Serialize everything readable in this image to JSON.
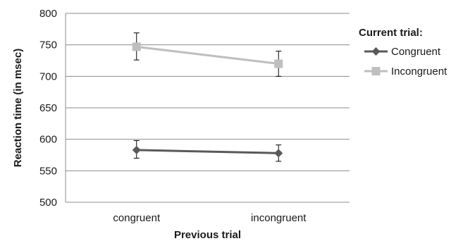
{
  "chart_data": {
    "type": "line",
    "xlabel": "Previous trial",
    "ylabel": "Reaction time  (in msec)",
    "categories": [
      "congruent",
      "incongruent"
    ],
    "ylim": [
      500,
      800
    ],
    "yticks": [
      500,
      550,
      600,
      650,
      700,
      750,
      800
    ],
    "grid": "horizontal",
    "legend": {
      "title": "Current trial:",
      "position": "right"
    },
    "series": [
      {
        "name": "Congruent",
        "marker": "diamond",
        "color": "#595959",
        "values": [
          583,
          578
        ],
        "error": [
          [
            570,
            598
          ],
          [
            565,
            591
          ]
        ]
      },
      {
        "name": "Incongruent",
        "marker": "square",
        "color": "#bfbfbf",
        "values": [
          747,
          720
        ],
        "error": [
          [
            726,
            769
          ],
          [
            700,
            740
          ]
        ]
      }
    ]
  }
}
